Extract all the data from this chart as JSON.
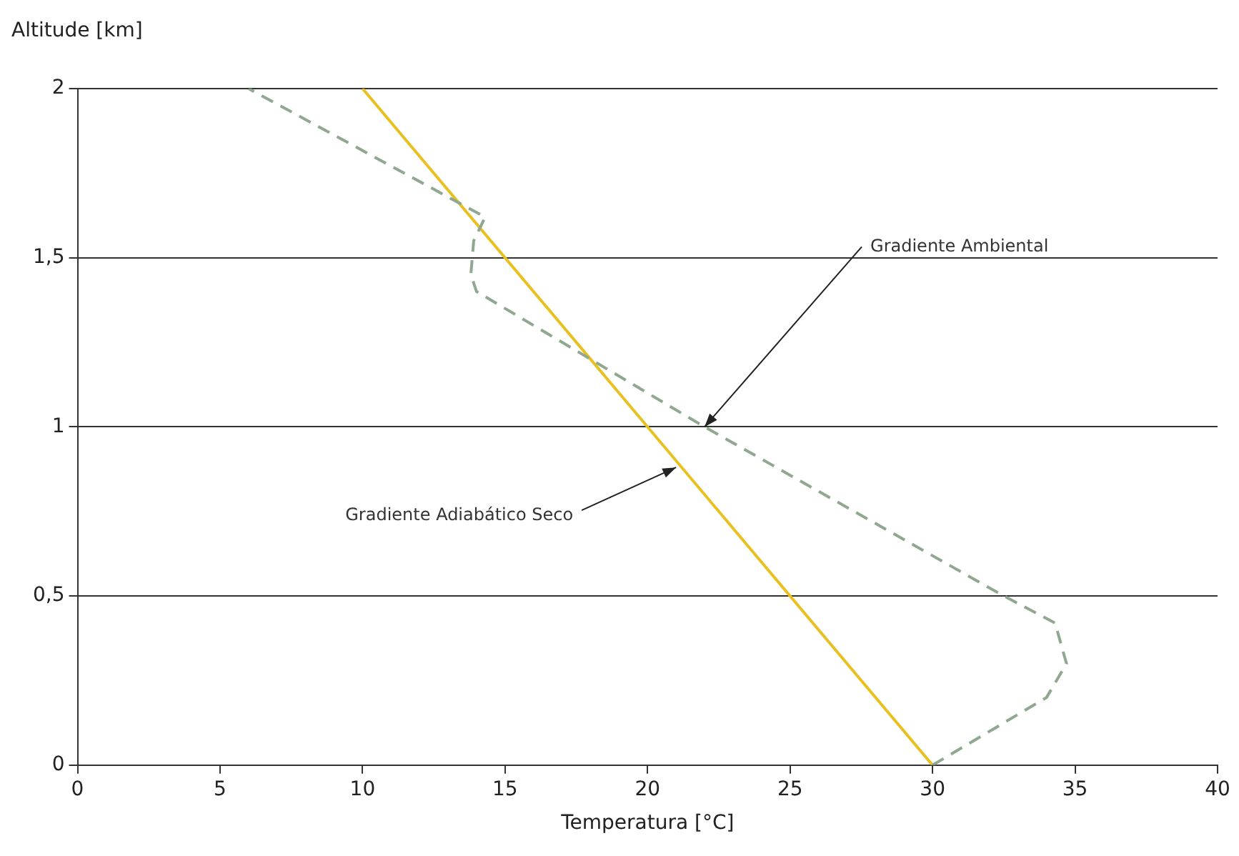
{
  "chart_data": {
    "type": "line",
    "xlabel": "Temperatura [°C]",
    "ylabel": "Altitude [km]",
    "xlim": [
      0,
      40
    ],
    "xticks": [
      0,
      5,
      10,
      15,
      20,
      25,
      30,
      35,
      40
    ],
    "ylim": [
      0,
      2
    ],
    "yticks": [
      0,
      {
        "value": 0.5,
        "label": "0,5"
      },
      1,
      {
        "value": 1.5,
        "label": "1,5"
      },
      2
    ],
    "grid": "y",
    "legend": false,
    "marker": "none",
    "series": [
      {
        "color": "#8fa88f",
        "line_style": "dashed",
        "x": [
          30,
          32,
          34,
          34.7,
          34.3,
          32.5,
          22,
          18,
          14,
          13.8,
          13.9,
          14.3,
          6
        ],
        "values": [
          0,
          0.1,
          0.2,
          0.3,
          0.42,
          0.5,
          1.0,
          1.2,
          1.4,
          1.45,
          1.55,
          1.62,
          2
        ]
      },
      {
        "color": "#e8c020",
        "line_style": "solid",
        "x": [
          30,
          10
        ],
        "values": [
          0,
          2
        ]
      }
    ],
    "annotations": [
      {
        "text": "Gradiente Ambiental",
        "x": 22,
        "y": 1.0
      },
      {
        "text": "Gradiente Adiabático Seco",
        "x": 21,
        "y": 0.88
      }
    ]
  }
}
